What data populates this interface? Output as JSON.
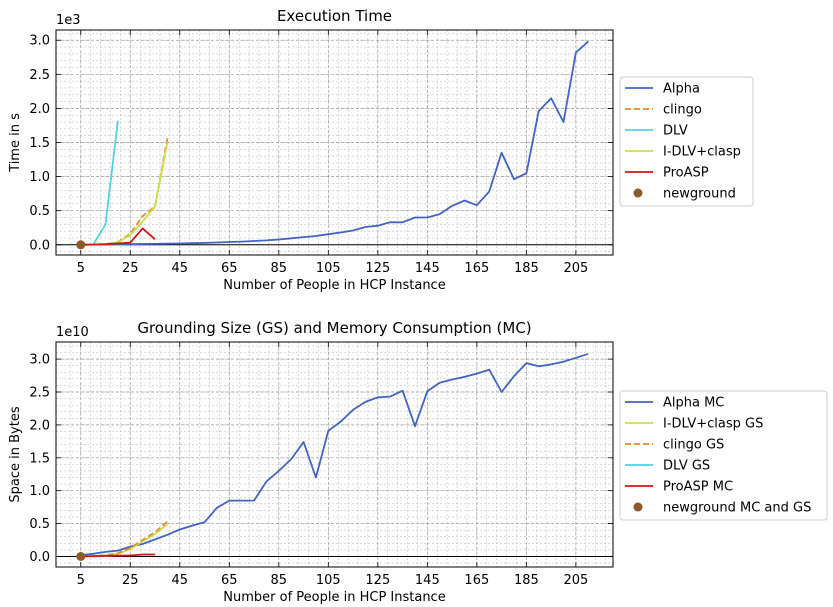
{
  "chart_data": [
    {
      "type": "line",
      "title": "Execution Time",
      "xlabel": "Number of People in HCP Instance",
      "ylabel": "Time in s",
      "y_offset_label": "1e3",
      "xlim": [
        -5,
        220
      ],
      "ylim": [
        -150,
        3150
      ],
      "xticks": [
        5,
        25,
        45,
        65,
        85,
        105,
        125,
        145,
        165,
        185,
        205
      ],
      "yticks": [
        0,
        500,
        1000,
        1500,
        2000,
        2500,
        3000
      ],
      "ytick_labels": [
        "0.0",
        "0.5",
        "1.0",
        "1.5",
        "2.0",
        "2.5",
        "3.0"
      ],
      "grid": true,
      "legend_placement": "right, outside plot",
      "series": [
        {
          "name": "Alpha",
          "color": "#4363c4",
          "style": "solid",
          "x": [
            5,
            10,
            15,
            20,
            25,
            30,
            35,
            40,
            45,
            50,
            55,
            60,
            65,
            70,
            75,
            80,
            85,
            90,
            95,
            100,
            105,
            110,
            115,
            120,
            125,
            130,
            135,
            140,
            145,
            150,
            155,
            160,
            165,
            170,
            175,
            180,
            185,
            190,
            195,
            200,
            205,
            210
          ],
          "y": [
            2,
            3,
            5,
            7,
            9,
            11,
            13,
            16,
            19,
            23,
            28,
            34,
            40,
            47,
            55,
            64,
            78,
            95,
            112,
            128,
            155,
            180,
            210,
            260,
            280,
            330,
            330,
            400,
            400,
            450,
            570,
            650,
            580,
            780,
            1350,
            960,
            1050,
            1960,
            2150,
            1800,
            2820,
            2980
          ]
        },
        {
          "name": "clingo",
          "color": "#e88a2d",
          "style": "dashed",
          "x": [
            5,
            10,
            15,
            20,
            25,
            30,
            35,
            40
          ],
          "y": [
            0,
            2,
            10,
            40,
            160,
            420,
            560,
            1560
          ]
        },
        {
          "name": "DLV",
          "color": "#4fd3e3",
          "style": "solid",
          "x": [
            10,
            15,
            20
          ],
          "y": [
            0,
            300,
            1820
          ]
        },
        {
          "name": "I-DLV+clasp",
          "color": "#c9e04a",
          "style": "solid",
          "x": [
            5,
            10,
            15,
            20,
            25,
            30,
            35,
            40
          ],
          "y": [
            0,
            2,
            10,
            35,
            140,
            340,
            560,
            1500
          ]
        },
        {
          "name": "ProASP",
          "color": "#d41414",
          "style": "solid",
          "x": [
            5,
            10,
            15,
            20,
            25,
            30,
            35
          ],
          "y": [
            0,
            2,
            8,
            20,
            30,
            240,
            80
          ]
        },
        {
          "name": "newground",
          "color": "#8b5a2b",
          "style": "marker",
          "x": [
            5
          ],
          "y": [
            0
          ]
        }
      ]
    },
    {
      "type": "line",
      "title": "Grounding Size (GS) and Memory Consumption (MC)",
      "xlabel": "Number of People in HCP Instance",
      "ylabel": "Space in Bytes",
      "y_offset_label": "1e10",
      "xlim": [
        -5,
        220
      ],
      "ylim": [
        -1600000000.0,
        32600000000.0
      ],
      "xticks": [
        5,
        25,
        45,
        65,
        85,
        105,
        125,
        145,
        165,
        185,
        205
      ],
      "yticks": [
        0,
        5000000000.0,
        10000000000.0,
        15000000000.0,
        20000000000.0,
        25000000000.0,
        30000000000.0
      ],
      "ytick_labels": [
        "0.0",
        "0.5",
        "1.0",
        "1.5",
        "2.0",
        "2.5",
        "3.0"
      ],
      "grid": true,
      "legend_placement": "right, outside plot",
      "series": [
        {
          "name": "Alpha MC",
          "color": "#4363c4",
          "style": "solid",
          "x": [
            5,
            10,
            15,
            20,
            25,
            30,
            35,
            40,
            45,
            50,
            55,
            60,
            65,
            70,
            75,
            80,
            85,
            90,
            95,
            100,
            105,
            110,
            115,
            120,
            125,
            130,
            135,
            140,
            145,
            150,
            155,
            160,
            165,
            170,
            175,
            180,
            185,
            190,
            195,
            200,
            205,
            210
          ],
          "y": [
            200000000.0,
            400000000.0,
            700000000.0,
            900000000.0,
            1500000000.0,
            1900000000.0,
            2600000000.0,
            3300000000.0,
            4100000000.0,
            4700000000.0,
            5200000000.0,
            7400000000.0,
            8500000000.0,
            8500000000.0,
            8500000000.0,
            11400000000.0,
            13000000000.0,
            14800000000.0,
            17400000000.0,
            12000000000.0,
            19100000000.0,
            20500000000.0,
            22300000000.0,
            23500000000.0,
            24200000000.0,
            24300000000.0,
            25200000000.0,
            19800000000.0,
            25100000000.0,
            26400000000.0,
            26900000000.0,
            27300000000.0,
            27800000000.0,
            28400000000.0,
            25000000000.0,
            27400000000.0,
            29400000000.0,
            28900000000.0,
            29200000000.0,
            29600000000.0,
            30200000000.0,
            30800000000.0
          ]
        },
        {
          "name": "I-DLV+clasp GS",
          "color": "#c9e04a",
          "style": "solid",
          "x": [
            5,
            10,
            15,
            20,
            25,
            30,
            35,
            40
          ],
          "y": [
            0,
            30000000.0,
            120000000.0,
            400000000.0,
            1100000000.0,
            2300000000.0,
            3400000000.0,
            4900000000.0
          ]
        },
        {
          "name": "clingo GS",
          "color": "#e88a2d",
          "style": "dashed",
          "x": [
            5,
            10,
            15,
            20,
            25,
            30,
            35,
            40
          ],
          "y": [
            0,
            50000000.0,
            180000000.0,
            500000000.0,
            1300000000.0,
            2500000000.0,
            3700000000.0,
            5300000000.0
          ]
        },
        {
          "name": "DLV GS",
          "color": "#4fd3e3",
          "style": "solid",
          "x": [
            10,
            15,
            20
          ],
          "y": [
            0,
            50000000.0,
            150000000.0
          ]
        },
        {
          "name": "ProASP MC",
          "color": "#d41414",
          "style": "solid",
          "x": [
            5,
            10,
            15,
            20,
            25,
            30,
            35
          ],
          "y": [
            0,
            50000000.0,
            100000000.0,
            120000000.0,
            150000000.0,
            300000000.0,
            300000000.0
          ]
        },
        {
          "name": "newground MC and GS",
          "color": "#8b5a2b",
          "style": "marker",
          "x": [
            5
          ],
          "y": [
            0
          ]
        }
      ]
    }
  ]
}
